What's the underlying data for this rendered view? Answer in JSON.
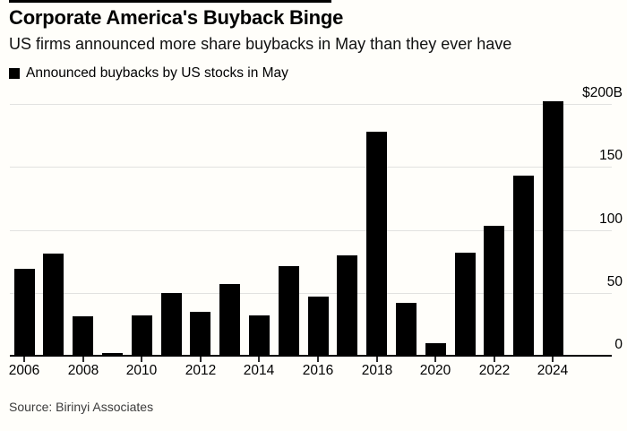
{
  "header": {
    "title": "Corporate America's Buyback Binge",
    "subtitle": "US firms announced more share buybacks in May than they ever have"
  },
  "legend": {
    "label": "Announced buybacks by US stocks in May",
    "swatch_color": "#000000"
  },
  "source": {
    "text": "Source: Birinyi Associates"
  },
  "colors": {
    "background": "#fffefa",
    "bar": "#000000",
    "gridline": "#e2e2e0",
    "axis": "#000000",
    "text": "#000000",
    "source_text": "#3c3c3c"
  },
  "chart_data": {
    "type": "bar",
    "title": "Corporate America's Buyback Binge",
    "subtitle": "US firms announced more share buybacks in May than they ever have",
    "legend_entries": [
      "Announced buybacks by US stocks in May"
    ],
    "legend_position": "top-left",
    "unit": "billions USD",
    "categories": [
      "2006",
      "2007",
      "2008",
      "2009",
      "2010",
      "2011",
      "2012",
      "2013",
      "2014",
      "2015",
      "2016",
      "2017",
      "2018",
      "2019",
      "2020",
      "2021",
      "2022",
      "2023",
      "2024"
    ],
    "values": [
      69,
      81,
      31,
      2,
      32,
      50,
      35,
      57,
      32,
      71,
      47,
      80,
      178,
      42,
      10,
      82,
      103,
      143,
      202
    ],
    "ylim": [
      0,
      200
    ],
    "yticks": [
      {
        "value": 200,
        "label": "$200B"
      },
      {
        "value": 150,
        "label": "150"
      },
      {
        "value": 100,
        "label": "100"
      },
      {
        "value": 50,
        "label": "50"
      },
      {
        "value": 0,
        "label": "0"
      }
    ],
    "y_axis_side": "right",
    "xticks": [
      "2006",
      "2008",
      "2010",
      "2012",
      "2014",
      "2016",
      "2018",
      "2020",
      "2022",
      "2024"
    ],
    "grid": "horizontal",
    "source": "Source: Birinyi Associates"
  }
}
